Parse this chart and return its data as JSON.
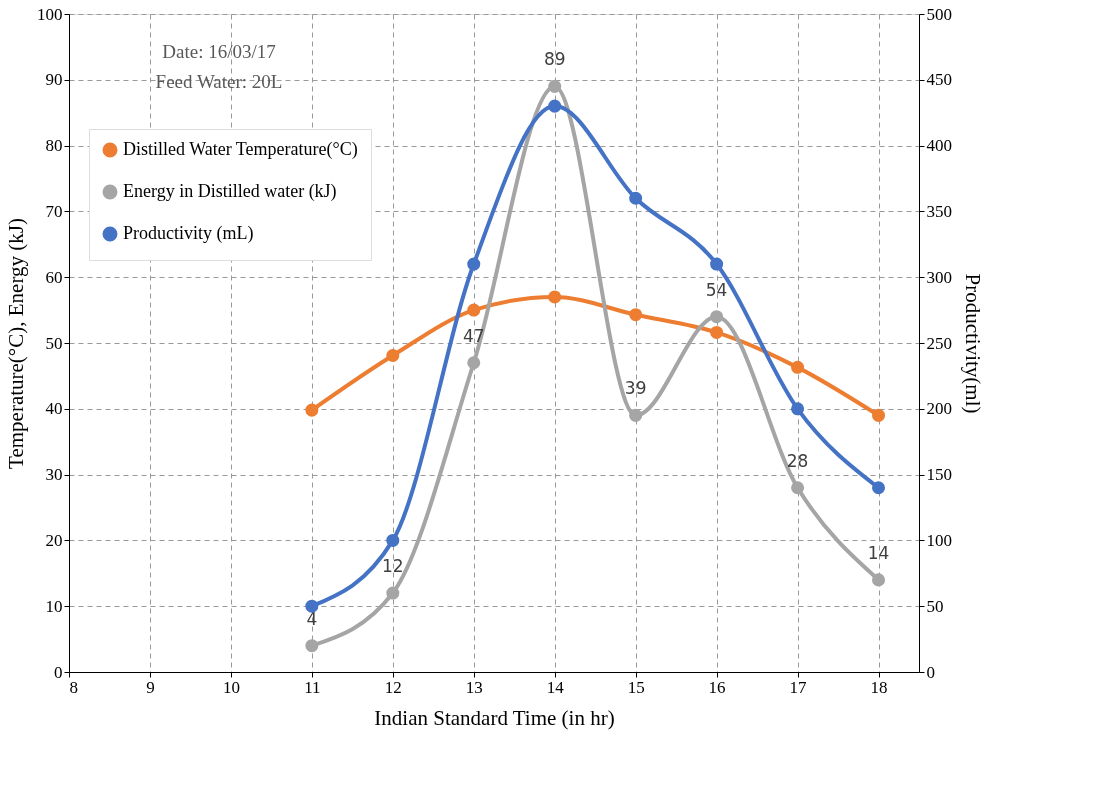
{
  "chart_data": {
    "type": "line",
    "xlabel": "Indian Standard Time (in hr)",
    "ylabel": "Temperature(°C), Energy (kJ)",
    "y2label": "Productivity(ml)",
    "annotations": [
      "Date: 16/03/17",
      "Feed Water: 20L"
    ],
    "x": [
      11,
      12,
      13,
      14,
      15,
      16,
      17,
      18
    ],
    "series": [
      {
        "name": "Distilled Water Temperature(°C)",
        "color": "#ed7d31",
        "values": [
          39.8,
          48.1,
          55,
          57,
          54.3,
          51.6,
          46.3,
          39
        ]
      },
      {
        "name": "Energy in Distilled water (kJ)",
        "color": "#a5a5a5",
        "values": [
          4,
          12,
          47,
          89,
          39,
          54,
          28,
          14
        ],
        "data_labels": true
      },
      {
        "name": "Productivity (mL)",
        "color": "#4472c4",
        "axis": "y2",
        "values": [
          50,
          100,
          310,
          430,
          360,
          310,
          200,
          140
        ]
      }
    ],
    "xlim": [
      8,
      18.5
    ],
    "xticks": [
      8,
      9,
      10,
      11,
      12,
      13,
      14,
      15,
      16,
      17,
      18
    ],
    "ylim": [
      0,
      100
    ],
    "yticks": [
      0,
      10,
      20,
      30,
      40,
      50,
      60,
      70,
      80,
      90,
      100
    ],
    "y2lim": [
      0,
      500
    ],
    "y2ticks": [
      0,
      50,
      100,
      150,
      200,
      250,
      300,
      350,
      400,
      450,
      500
    ],
    "grid": true,
    "legend": "top left",
    "marker": "circle",
    "line_style": "solid"
  }
}
